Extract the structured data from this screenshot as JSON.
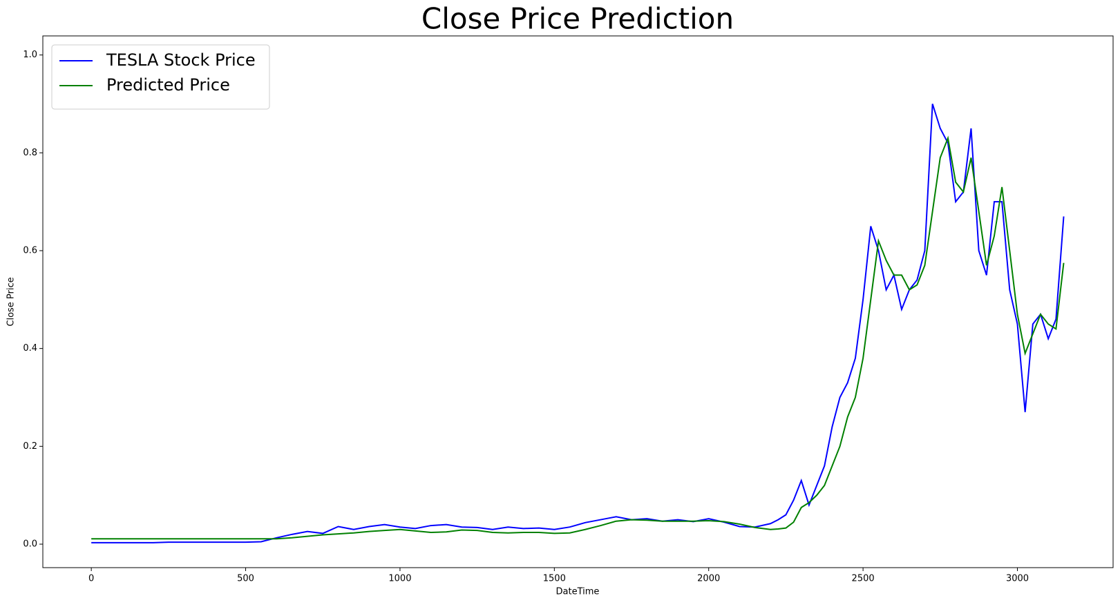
{
  "chart_data": {
    "type": "line",
    "title": "Close Price Prediction",
    "x_label": "DateTime",
    "y_label": "Close Price",
    "x": [
      0,
      50,
      100,
      150,
      200,
      250,
      300,
      350,
      400,
      450,
      500,
      550,
      600,
      650,
      700,
      750,
      800,
      850,
      900,
      950,
      1000,
      1050,
      1100,
      1150,
      1200,
      1250,
      1300,
      1350,
      1400,
      1450,
      1500,
      1550,
      1600,
      1650,
      1700,
      1750,
      1800,
      1850,
      1900,
      1950,
      2000,
      2050,
      2100,
      2150,
      2200,
      2225,
      2250,
      2275,
      2300,
      2325,
      2350,
      2375,
      2400,
      2425,
      2450,
      2475,
      2500,
      2525,
      2550,
      2575,
      2600,
      2625,
      2650,
      2675,
      2700,
      2725,
      2750,
      2775,
      2800,
      2825,
      2850,
      2875,
      2900,
      2925,
      2950,
      2975,
      3000,
      3025,
      3050,
      3075,
      3100,
      3125,
      3150
    ],
    "series": [
      {
        "name": "TESLA Stock Price",
        "color": "#0000ff",
        "values": [
          0.003,
          0.003,
          0.003,
          0.003,
          0.003,
          0.004,
          0.004,
          0.004,
          0.004,
          0.004,
          0.004,
          0.005,
          0.013,
          0.02,
          0.026,
          0.022,
          0.036,
          0.03,
          0.036,
          0.04,
          0.035,
          0.032,
          0.038,
          0.04,
          0.035,
          0.034,
          0.03,
          0.035,
          0.032,
          0.033,
          0.03,
          0.035,
          0.044,
          0.05,
          0.056,
          0.05,
          0.052,
          0.047,
          0.05,
          0.046,
          0.052,
          0.045,
          0.036,
          0.035,
          0.042,
          0.05,
          0.06,
          0.09,
          0.13,
          0.08,
          0.12,
          0.16,
          0.24,
          0.3,
          0.33,
          0.38,
          0.5,
          0.65,
          0.6,
          0.52,
          0.55,
          0.48,
          0.52,
          0.54,
          0.6,
          0.9,
          0.85,
          0.82,
          0.7,
          0.72,
          0.85,
          0.6,
          0.55,
          0.7,
          0.7,
          0.52,
          0.45,
          0.27,
          0.45,
          0.47,
          0.42,
          0.46,
          0.67
        ]
      },
      {
        "name": "Predicted Price",
        "color": "#008000",
        "values": [
          0.011,
          0.011,
          0.011,
          0.011,
          0.011,
          0.011,
          0.011,
          0.011,
          0.011,
          0.011,
          0.011,
          0.011,
          0.011,
          0.013,
          0.016,
          0.019,
          0.021,
          0.023,
          0.026,
          0.028,
          0.03,
          0.027,
          0.024,
          0.025,
          0.029,
          0.028,
          0.024,
          0.023,
          0.024,
          0.024,
          0.022,
          0.023,
          0.03,
          0.038,
          0.047,
          0.05,
          0.049,
          0.047,
          0.047,
          0.047,
          0.048,
          0.046,
          0.041,
          0.034,
          0.03,
          0.031,
          0.033,
          0.045,
          0.075,
          0.085,
          0.1,
          0.12,
          0.16,
          0.2,
          0.26,
          0.3,
          0.38,
          0.5,
          0.62,
          0.58,
          0.55,
          0.55,
          0.52,
          0.53,
          0.57,
          0.68,
          0.79,
          0.83,
          0.74,
          0.72,
          0.79,
          0.68,
          0.57,
          0.63,
          0.73,
          0.6,
          0.47,
          0.39,
          0.43,
          0.47,
          0.45,
          0.44,
          0.575
        ]
      }
    ],
    "xlim": [
      -157,
      3310
    ],
    "ylim": [
      -0.048,
      1.039
    ],
    "xticks": [
      0,
      500,
      1000,
      1500,
      2000,
      2500,
      3000
    ],
    "yticks": [
      {
        "value": 0,
        "label": "0.0"
      },
      0.2,
      0.4,
      0.6,
      0.8,
      {
        "value": 1,
        "label": "1.0"
      }
    ],
    "legend": "upper left"
  }
}
